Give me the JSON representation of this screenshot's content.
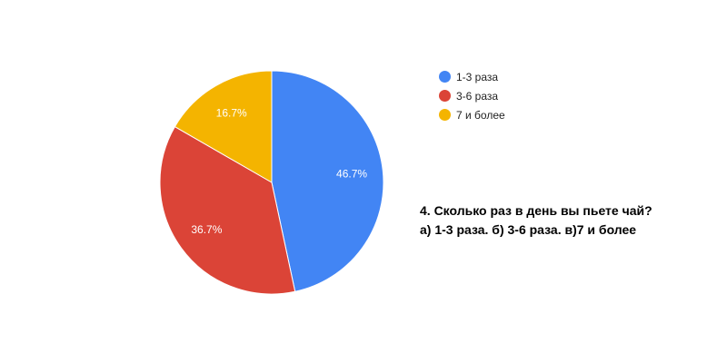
{
  "chart_data": {
    "type": "pie",
    "slices": [
      {
        "label": "1-3 раза",
        "value": 46.7,
        "color": "#4285f4",
        "display": "46.7%"
      },
      {
        "label": "3-6 раза",
        "value": 36.7,
        "color": "#db4437",
        "display": "36.7%"
      },
      {
        "label": "7 и более",
        "value": 16.7,
        "color": "#f4b400",
        "display": "16.7%"
      }
    ],
    "legend_position": "right-top",
    "start_angle": "12 o'clock, clockwise"
  },
  "question": {
    "line1": "4. Сколько раз в день вы пьете чай?",
    "line2": "а) 1-3 раза. б) 3-6 раза. в)7 и более"
  }
}
